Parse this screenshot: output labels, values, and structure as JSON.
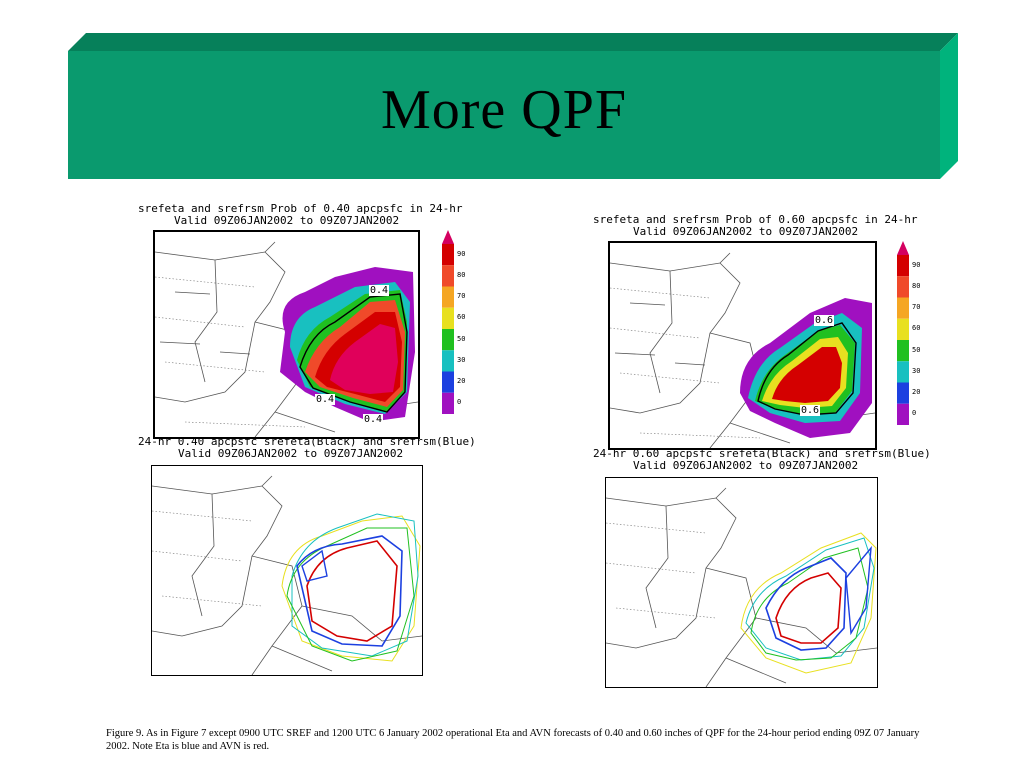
{
  "slide": {
    "title": "More QPF",
    "banner_color": "#0a9a6e",
    "banner_side_color": "#00b37c",
    "banner_top_color": "#06805a"
  },
  "maps": {
    "prob_040": {
      "title_line1": "srefeta and srefrsm Prob of 0.40 apcpsfc in 24-hr",
      "title_line2": "Valid 09Z06JAN2002 to 09Z07JAN2002",
      "contour_labels": [
        "0.4",
        "0.4",
        "0.4"
      ]
    },
    "prob_060": {
      "title_line1": "srefeta and srefrsm Prob of 0.60 apcpsfc in 24-hr",
      "title_line2": "Valid 09Z06JAN2002 to 09Z07JAN2002",
      "contour_labels": [
        "0.6",
        "0.6"
      ]
    },
    "qpf_040": {
      "title_line1": "24-hr 0.40 apcpsfc srefeta(Black) and srefrsm(Blue)",
      "title_line2": "Valid 09Z06JAN2002 to 09Z07JAN2002"
    },
    "qpf_060": {
      "title_line1": "24-hr 0.60 apcpsfc srefeta(Black) and srefrsm(Blue)",
      "title_line2": "Valid 09Z06JAN2002 to 09Z07JAN2002"
    }
  },
  "colorbar": {
    "labels": [
      "90",
      "80",
      "70",
      "60",
      "50",
      "30",
      "20",
      "0"
    ],
    "colors": [
      "#d40000",
      "#f04a2a",
      "#f5a623",
      "#e8e020",
      "#20c020",
      "#18c0c0",
      "#1c40e0",
      "#a010c0"
    ]
  },
  "caption": "Figure 9.  As in Figure 7 except  0900 UTC SREF and 1200 UTC  6 January 2002  operational Eta and AVN forecasts of  0.40 and 0.60 inches of QPF for the 24-hour period ending 09Z 07 January 2002.  Note Eta is blue and AVN is red."
}
